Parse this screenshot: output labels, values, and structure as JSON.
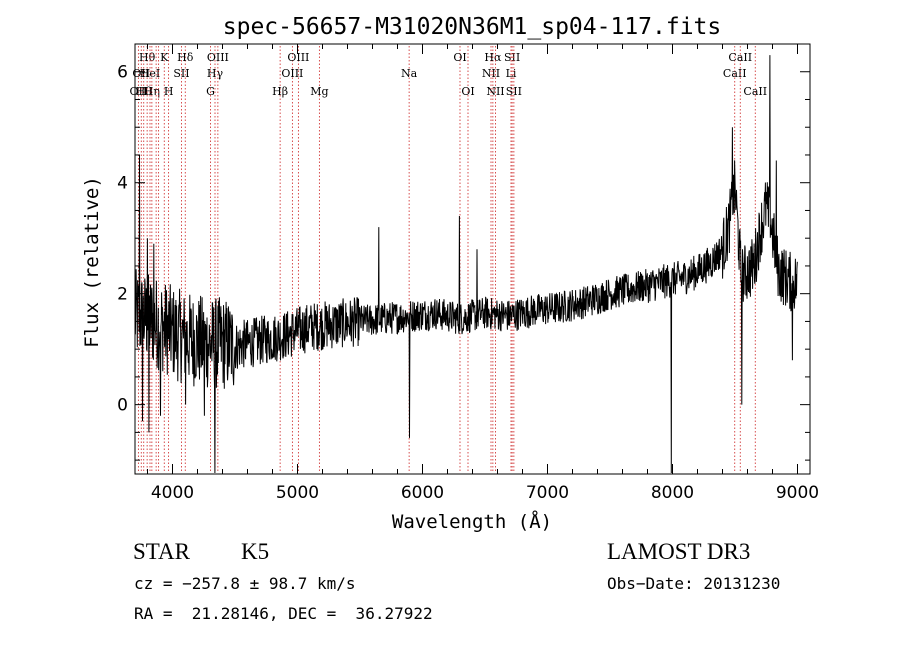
{
  "chart_data": {
    "type": "line",
    "title": "spec-56657-M31020N36M1_sp04-117.fits",
    "xlabel": "Wavelength (Å)",
    "ylabel": "Flux (relative)",
    "xlim": [
      3700,
      9100
    ],
    "ylim": [
      -1.25,
      6.5
    ],
    "xticks": [
      4000,
      5000,
      6000,
      7000,
      8000,
      9000
    ],
    "xtick_labels": [
      "4000",
      "5000",
      "6000",
      "7000",
      "8000",
      "9000"
    ],
    "yticks": [
      0,
      2,
      4,
      6
    ],
    "ytick_labels": [
      "0",
      "2",
      "4",
      "6"
    ],
    "grid": false,
    "spectrum_anchors": {
      "x": [
        3700,
        3800,
        3900,
        4000,
        4100,
        4200,
        4300,
        4400,
        4500,
        4700,
        4900,
        5100,
        5300,
        5500,
        5700,
        5900,
        6100,
        6300,
        6500,
        6700,
        6900,
        7100,
        7300,
        7500,
        7700,
        7900,
        8100,
        8200,
        8300,
        8400,
        8450,
        8500,
        8550,
        8600,
        8650,
        8700,
        8750,
        8800,
        8850,
        8900,
        8950,
        9000
      ],
      "y": [
        1.6,
        1.55,
        1.45,
        1.3,
        1.2,
        1.15,
        1.1,
        1.1,
        1.05,
        1.15,
        1.25,
        1.4,
        1.45,
        1.5,
        1.55,
        1.6,
        1.65,
        1.55,
        1.65,
        1.6,
        1.7,
        1.75,
        1.85,
        2.0,
        2.1,
        2.2,
        2.3,
        2.4,
        2.55,
        2.8,
        3.2,
        3.9,
        2.3,
        2.4,
        2.5,
        3.1,
        3.6,
        3.1,
        2.4,
        2.3,
        2.2,
        2.2
      ]
    },
    "spikes": [
      {
        "x": 3735,
        "y": 4.5
      },
      {
        "x": 3760,
        "y": -0.3
      },
      {
        "x": 3800,
        "y": 3.0
      },
      {
        "x": 3812,
        "y": -0.5
      },
      {
        "x": 3850,
        "y": 2.9
      },
      {
        "x": 3905,
        "y": -0.2
      },
      {
        "x": 4105,
        "y": 0.0
      },
      {
        "x": 4255,
        "y": -0.2
      },
      {
        "x": 4340,
        "y": -1.25
      },
      {
        "x": 5650,
        "y": 3.2
      },
      {
        "x": 5895,
        "y": -0.6
      },
      {
        "x": 6295,
        "y": 3.4
      },
      {
        "x": 6435,
        "y": 2.8
      },
      {
        "x": 7990,
        "y": -1.25
      },
      {
        "x": 8480,
        "y": 5.0
      },
      {
        "x": 8555,
        "y": 0.0
      },
      {
        "x": 8780,
        "y": 6.3
      },
      {
        "x": 8830,
        "y": 4.4
      },
      {
        "x": 8960,
        "y": 0.8
      },
      {
        "x": 9000,
        "y": 0.0
      }
    ],
    "lines": [
      {
        "x": 3727,
        "label": "OII",
        "row": 3
      },
      {
        "x": 3750,
        "label": "OII",
        "row": 2
      },
      {
        "x": 3770,
        "label": "Hθ",
        "row": 3
      },
      {
        "x": 3797,
        "label": "Hθ",
        "row": 1
      },
      {
        "x": 3820,
        "label": "HeI",
        "row": 2
      },
      {
        "x": 3835,
        "label": "Hη",
        "row": 3
      },
      {
        "x": 3869,
        "label": "",
        "row": 0
      },
      {
        "x": 3889,
        "label": "",
        "row": 0
      },
      {
        "x": 3934,
        "label": "K",
        "row": 1
      },
      {
        "x": 3969,
        "label": "H",
        "row": 3
      },
      {
        "x": 4072,
        "label": "SII",
        "row": 2
      },
      {
        "x": 4102,
        "label": "Hδ",
        "row": 1
      },
      {
        "x": 4304,
        "label": "G",
        "row": 3
      },
      {
        "x": 4340,
        "label": "Hγ",
        "row": 2
      },
      {
        "x": 4363,
        "label": "OIII",
        "row": 1
      },
      {
        "x": 4861,
        "label": "Hβ",
        "row": 3
      },
      {
        "x": 4959,
        "label": "OIII",
        "row": 2
      },
      {
        "x": 5007,
        "label": "OIII",
        "row": 1
      },
      {
        "x": 5175,
        "label": "Mg",
        "row": 3
      },
      {
        "x": 5893,
        "label": "Na",
        "row": 2
      },
      {
        "x": 6300,
        "label": "OI",
        "row": 1
      },
      {
        "x": 6364,
        "label": "OI",
        "row": 3
      },
      {
        "x": 6548,
        "label": "NII",
        "row": 2
      },
      {
        "x": 6563,
        "label": "Hα",
        "row": 1
      },
      {
        "x": 6584,
        "label": "NII",
        "row": 3
      },
      {
        "x": 6708,
        "label": "Li",
        "row": 2
      },
      {
        "x": 6717,
        "label": "SII",
        "row": 1
      },
      {
        "x": 6731,
        "label": "SII",
        "row": 3
      },
      {
        "x": 8498,
        "label": "CaII",
        "row": 2
      },
      {
        "x": 8542,
        "label": "CaII",
        "row": 1
      },
      {
        "x": 8662,
        "label": "CaII",
        "row": 3
      }
    ],
    "line_color": "#cc2222",
    "spectrum_color": "#000000"
  },
  "info": {
    "class": "STAR",
    "subclass": "K5",
    "survey": "LAMOST DR3",
    "cz": "cz = −257.8 ± 98.7 km/s",
    "obs_date": "Obs−Date: 20131230",
    "radec": "RA =  21.28146, DEC =  36.27922"
  }
}
